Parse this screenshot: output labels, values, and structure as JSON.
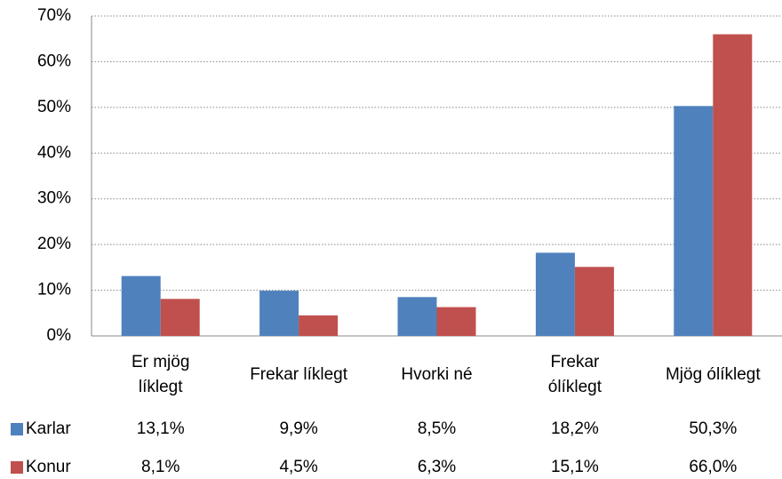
{
  "chart_data": {
    "type": "bar",
    "categories": [
      "Er mjög líklegt",
      "Frekar líklegt",
      "Hvorki né",
      "Frekar ólíklegt",
      "Mjög ólíklegt"
    ],
    "series": [
      {
        "name": "Karlar",
        "color": "#4f81bd",
        "values": [
          13.1,
          9.9,
          8.5,
          18.2,
          50.3
        ],
        "value_labels": [
          "13,1%",
          "9,9%",
          "8,5%",
          "18,2%",
          "50,3%"
        ]
      },
      {
        "name": "Konur",
        "color": "#c0504d",
        "values": [
          8.1,
          4.5,
          6.3,
          15.1,
          66.0
        ],
        "value_labels": [
          "8,1%",
          "4,5%",
          "6,3%",
          "15,1%",
          "66,0%"
        ]
      }
    ],
    "ylim": [
      0,
      70
    ],
    "yticks": [
      {
        "value": 0,
        "label": "0%"
      },
      {
        "value": 10,
        "label": "10%"
      },
      {
        "value": 20,
        "label": "20%"
      },
      {
        "value": 30,
        "label": "30%"
      },
      {
        "value": 40,
        "label": "40%"
      },
      {
        "value": 50,
        "label": "50%"
      },
      {
        "value": 60,
        "label": "60%"
      },
      {
        "value": 70,
        "label": "70%"
      }
    ],
    "grid": true
  }
}
